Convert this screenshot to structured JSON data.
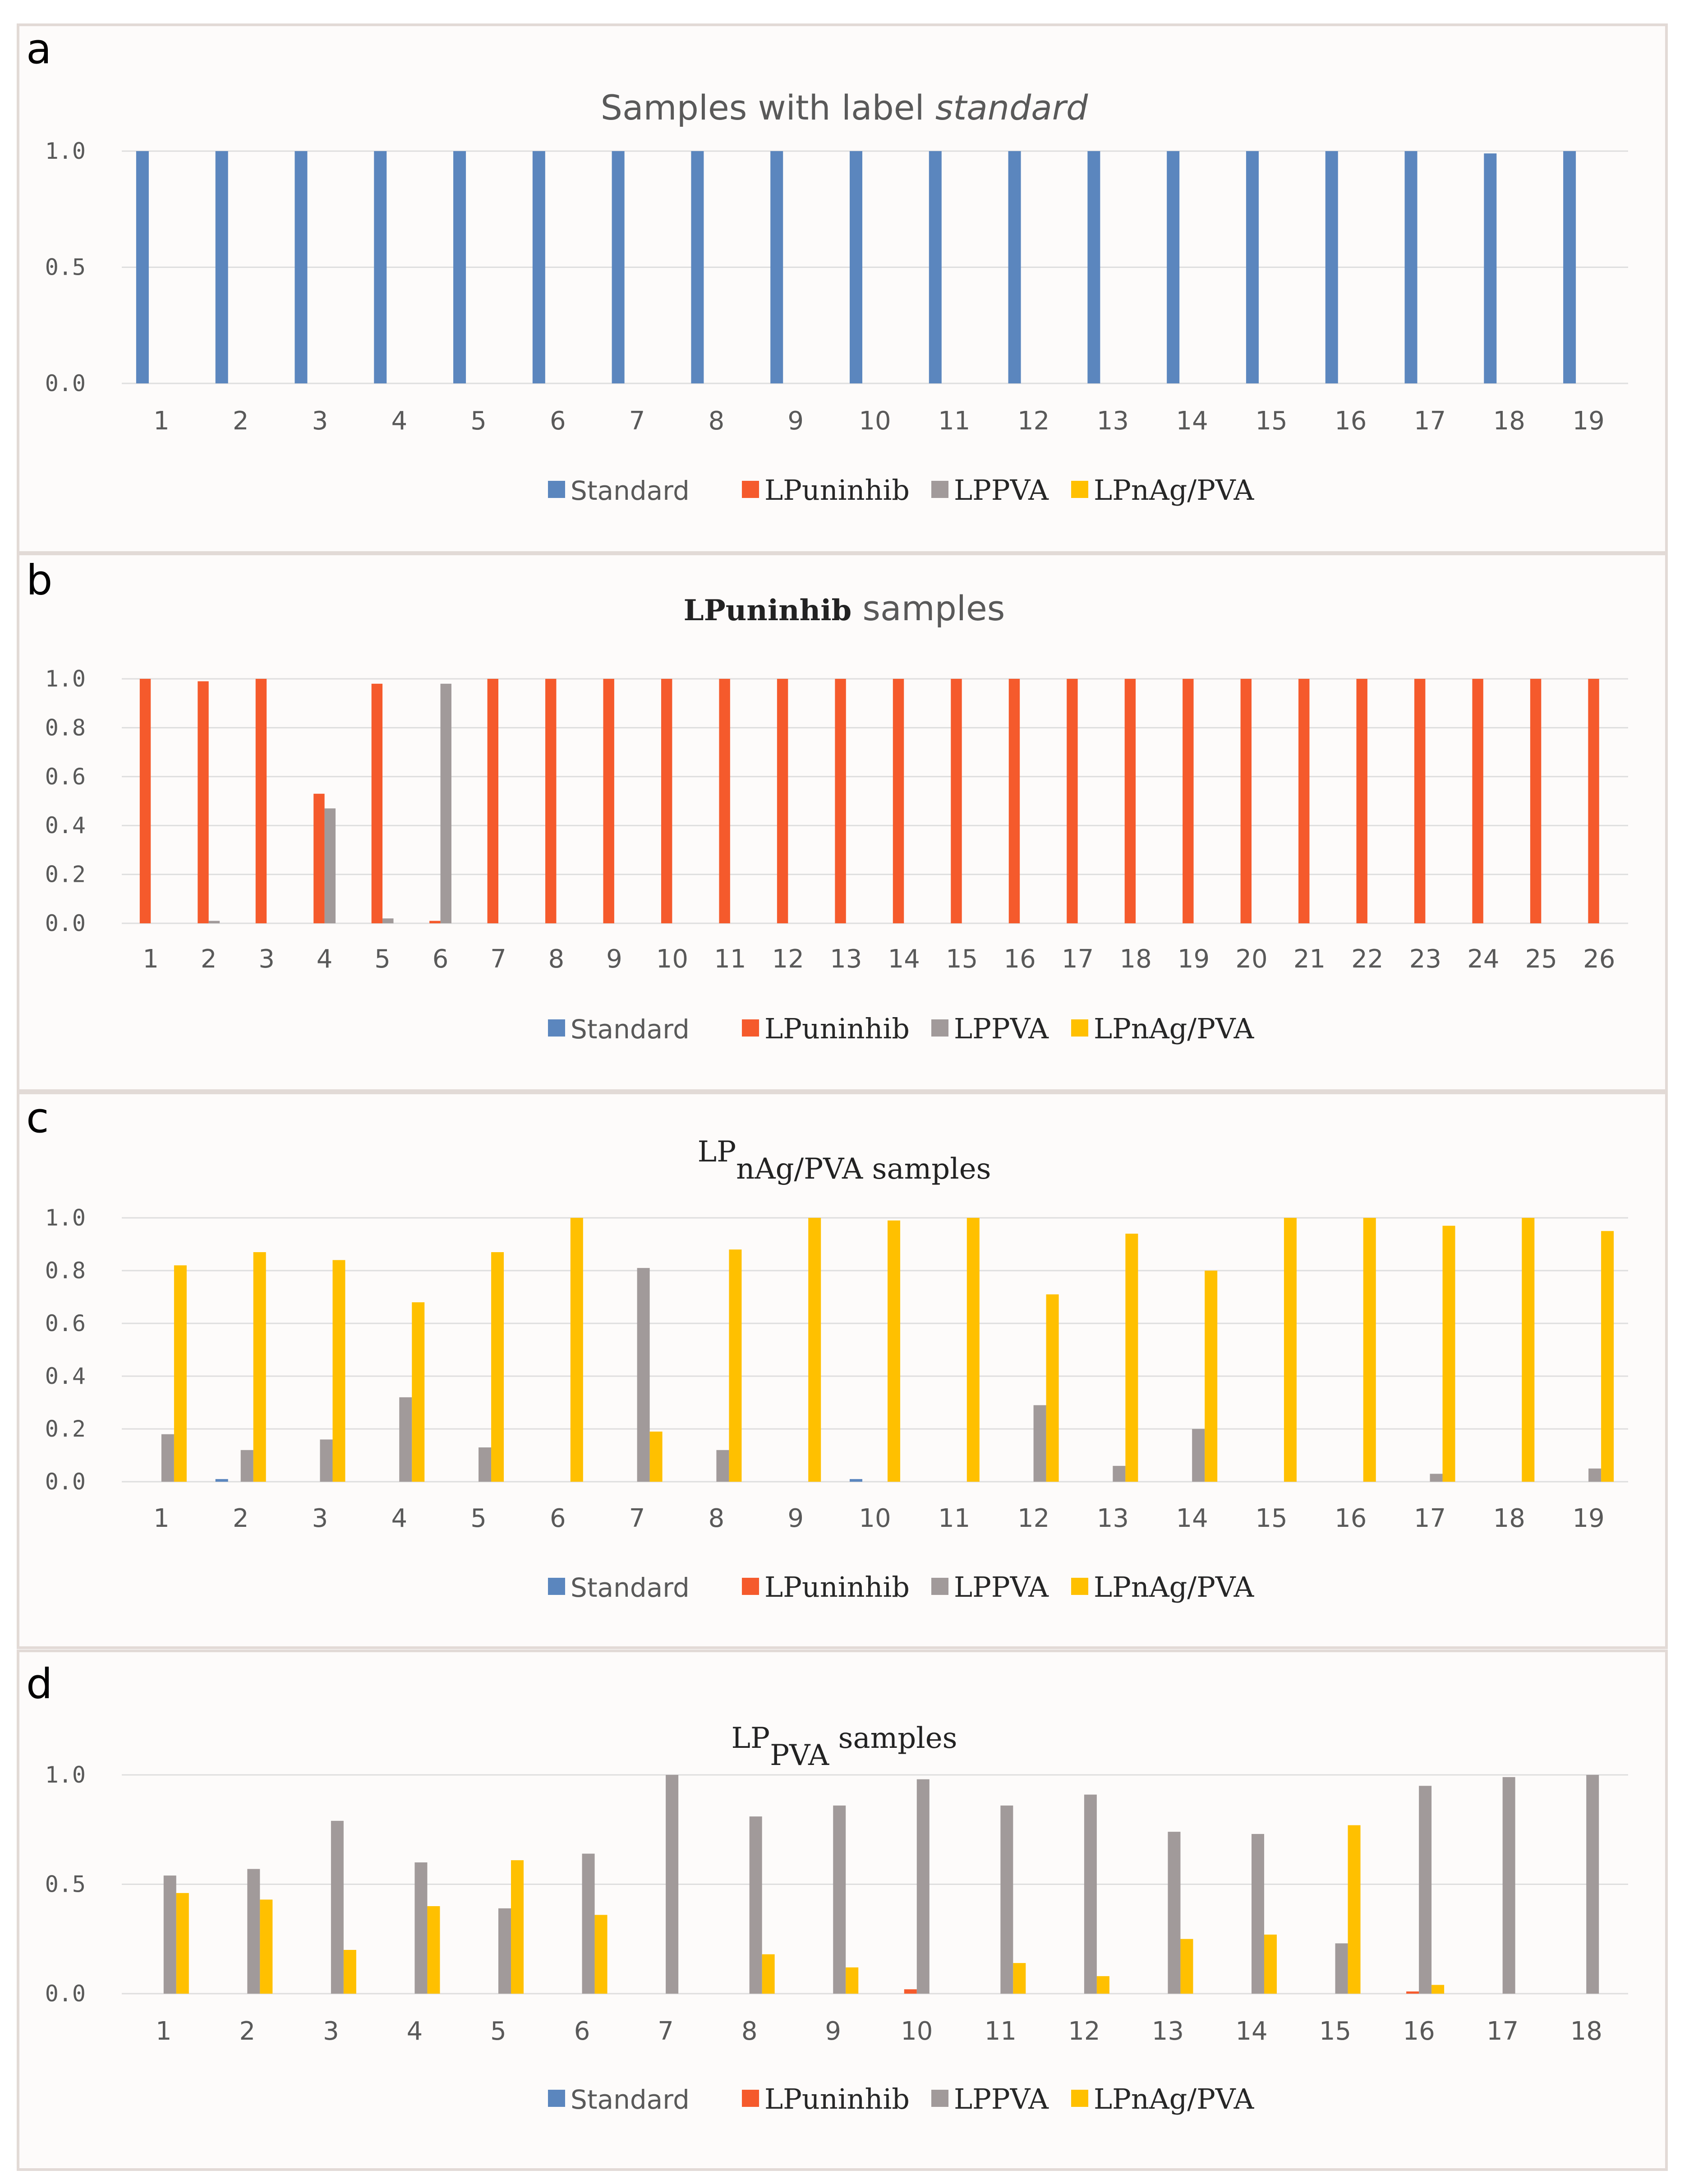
{
  "colors": {
    "Standard": "#5b86be",
    "LPuninhib": "#f55a2c",
    "LPPVA": "#a19a9a",
    "LPnAg/PVA": "#ffc000"
  },
  "legend": [
    "Standard",
    "LPuninhib",
    "LPPVA",
    "LPnAg/PVA"
  ],
  "chart_data": [
    {
      "panel": "a",
      "type": "bar",
      "title": "Samples with label standard",
      "title_parts": [
        {
          "text": "Samples with label ",
          "style": "normal"
        },
        {
          "text": "standard",
          "style": "italic"
        }
      ],
      "xlabel": "",
      "ylabel": "",
      "ylim": [
        0,
        1.0
      ],
      "yticks": [
        "0.0",
        "0.5",
        "1.0"
      ],
      "ytick_values": [
        0,
        0.5,
        1.0
      ],
      "categories": [
        "1",
        "2",
        "3",
        "4",
        "5",
        "6",
        "7",
        "8",
        "9",
        "10",
        "11",
        "12",
        "13",
        "14",
        "15",
        "16",
        "17",
        "18",
        "19"
      ],
      "series": [
        {
          "name": "Standard",
          "values": [
            1.0,
            1.0,
            1.0,
            1.0,
            1.0,
            1.0,
            1.0,
            1.0,
            1.0,
            1.0,
            1.0,
            1.0,
            1.0,
            1.0,
            1.0,
            1.0,
            1.0,
            0.99,
            1.0
          ]
        },
        {
          "name": "LPuninhib",
          "values": [
            0,
            0,
            0,
            0,
            0,
            0,
            0,
            0,
            0,
            0,
            0,
            0,
            0,
            0,
            0,
            0,
            0,
            0,
            0
          ]
        },
        {
          "name": "LPPVA",
          "values": [
            0,
            0,
            0,
            0,
            0,
            0,
            0,
            0,
            0,
            0,
            0,
            0,
            0,
            0,
            0,
            0,
            0,
            0,
            0
          ]
        },
        {
          "name": "LPnAg/PVA",
          "values": [
            0,
            0,
            0,
            0,
            0,
            0,
            0,
            0,
            0,
            0,
            0,
            0,
            0,
            0,
            0,
            0,
            0,
            0,
            0
          ]
        }
      ],
      "legend_position": "bottom"
    },
    {
      "panel": "b",
      "type": "bar",
      "title": "LPuninhib samples",
      "title_parts": [
        {
          "text": "LPuninhib",
          "style": "serif-bold"
        },
        {
          "text": " samples",
          "style": "normal"
        }
      ],
      "xlabel": "",
      "ylabel": "",
      "ylim": [
        0,
        1.0
      ],
      "yticks": [
        "0.0",
        "0.2",
        "0.4",
        "0.6",
        "0.8",
        "1.0"
      ],
      "ytick_values": [
        0,
        0.2,
        0.4,
        0.6,
        0.8,
        1.0
      ],
      "categories": [
        "1",
        "2",
        "3",
        "4",
        "5",
        "6",
        "7",
        "8",
        "9",
        "10",
        "11",
        "12",
        "13",
        "14",
        "15",
        "16",
        "17",
        "18",
        "19",
        "20",
        "21",
        "22",
        "23",
        "24",
        "25",
        "26"
      ],
      "series": [
        {
          "name": "Standard",
          "values": [
            0,
            0,
            0,
            0,
            0,
            0,
            0,
            0,
            0,
            0,
            0,
            0,
            0,
            0,
            0,
            0,
            0,
            0,
            0,
            0,
            0,
            0,
            0,
            0,
            0,
            0
          ]
        },
        {
          "name": "LPuninhib",
          "values": [
            1.0,
            0.99,
            1.0,
            0.53,
            0.98,
            0.01,
            1.0,
            1.0,
            1.0,
            1.0,
            1.0,
            1.0,
            1.0,
            1.0,
            1.0,
            1.0,
            1.0,
            1.0,
            1.0,
            1.0,
            1.0,
            1.0,
            1.0,
            1.0,
            1.0,
            1.0
          ]
        },
        {
          "name": "LPPVA",
          "values": [
            0,
            0.01,
            0,
            0.47,
            0.02,
            0.98,
            0,
            0,
            0,
            0,
            0,
            0,
            0,
            0,
            0,
            0,
            0,
            0,
            0,
            0,
            0,
            0,
            0,
            0,
            0,
            0
          ]
        },
        {
          "name": "LPnAg/PVA",
          "values": [
            0,
            0,
            0,
            0,
            0,
            0,
            0,
            0,
            0,
            0,
            0,
            0,
            0,
            0,
            0,
            0,
            0,
            0,
            0,
            0,
            0,
            0,
            0,
            0,
            0,
            0
          ]
        }
      ],
      "legend_position": "bottom"
    },
    {
      "panel": "c",
      "type": "bar",
      "title": "LPnAg/PVA samples",
      "title_parts": [
        {
          "text": "LP",
          "style": "serif"
        },
        {
          "text": "nAg/PVA samples",
          "style": "serif-sub"
        }
      ],
      "xlabel": "",
      "ylabel": "",
      "ylim": [
        0,
        1.0
      ],
      "yticks": [
        "0.0",
        "0.2",
        "0.4",
        "0.6",
        "0.8",
        "1.0"
      ],
      "ytick_values": [
        0,
        0.2,
        0.4,
        0.6,
        0.8,
        1.0
      ],
      "categories": [
        "1",
        "2",
        "3",
        "4",
        "5",
        "6",
        "7",
        "8",
        "9",
        "10",
        "11",
        "12",
        "13",
        "14",
        "15",
        "16",
        "17",
        "18",
        "19"
      ],
      "series": [
        {
          "name": "Standard",
          "values": [
            0,
            0.01,
            0,
            0,
            0,
            0,
            0,
            0,
            0,
            0.01,
            0,
            0,
            0,
            0,
            0,
            0,
            0,
            0,
            0
          ]
        },
        {
          "name": "LPuninhib",
          "values": [
            0,
            0,
            0,
            0,
            0,
            0,
            0,
            0,
            0,
            0,
            0,
            0,
            0,
            0,
            0,
            0,
            0,
            0,
            0
          ]
        },
        {
          "name": "LPPVA",
          "values": [
            0.18,
            0.12,
            0.16,
            0.32,
            0.13,
            0,
            0.81,
            0.12,
            0,
            0,
            0,
            0.29,
            0.06,
            0.2,
            0,
            0,
            0.03,
            0,
            0.05
          ]
        },
        {
          "name": "LPnAg/PVA",
          "values": [
            0.82,
            0.87,
            0.84,
            0.68,
            0.87,
            1.0,
            0.19,
            0.88,
            1.0,
            0.99,
            1.0,
            0.71,
            0.94,
            0.8,
            1.0,
            1.0,
            0.97,
            1.0,
            0.95
          ]
        }
      ],
      "legend_position": "bottom"
    },
    {
      "panel": "d",
      "type": "bar",
      "title": "LPPVA samples",
      "title_parts": [
        {
          "text": "LP",
          "style": "serif"
        },
        {
          "text": "PVA",
          "style": "serif-sub"
        },
        {
          "text": " samples",
          "style": "serif"
        }
      ],
      "xlabel": "",
      "ylabel": "",
      "ylim": [
        0,
        1.0
      ],
      "yticks": [
        "0.0",
        "0.5",
        "1.0"
      ],
      "ytick_values": [
        0,
        0.5,
        1.0
      ],
      "categories": [
        "1",
        "2",
        "3",
        "4",
        "5",
        "6",
        "7",
        "8",
        "9",
        "10",
        "11",
        "12",
        "13",
        "14",
        "15",
        "16",
        "17",
        "18"
      ],
      "series": [
        {
          "name": "Standard",
          "values": [
            0,
            0,
            0,
            0,
            0,
            0,
            0,
            0,
            0,
            0,
            0,
            0,
            0,
            0,
            0,
            0,
            0,
            0
          ]
        },
        {
          "name": "LPuninhib",
          "values": [
            0,
            0,
            0,
            0,
            0,
            0,
            0,
            0,
            0,
            0.02,
            0,
            0,
            0,
            0,
            0,
            0.01,
            0,
            0
          ]
        },
        {
          "name": "LPPVA",
          "values": [
            0.54,
            0.57,
            0.79,
            0.6,
            0.39,
            0.64,
            1.0,
            0.81,
            0.86,
            0.98,
            0.86,
            0.91,
            0.74,
            0.73,
            0.23,
            0.95,
            0.99,
            1.0
          ]
        },
        {
          "name": "LPnAg/PVA",
          "values": [
            0.46,
            0.43,
            0.2,
            0.4,
            0.61,
            0.36,
            0,
            0.18,
            0.12,
            0,
            0.14,
            0.08,
            0.25,
            0.27,
            0.77,
            0.04,
            0,
            0
          ]
        }
      ],
      "legend_position": "bottom"
    }
  ]
}
